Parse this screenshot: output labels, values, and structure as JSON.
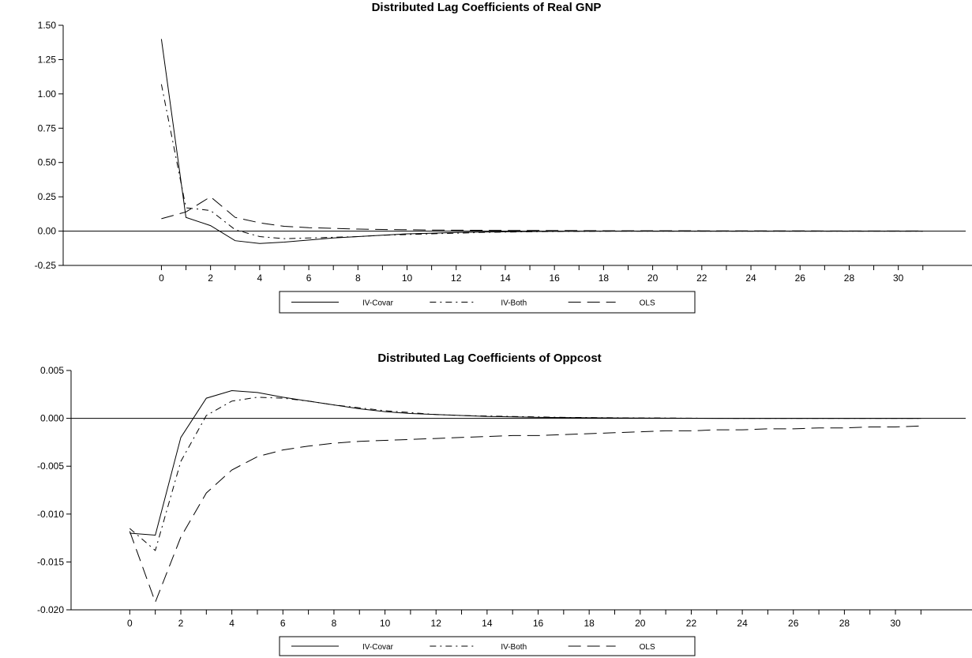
{
  "chart_data": [
    {
      "type": "line",
      "title": "Distributed Lag Coefficients of Real GNP",
      "xlabel": "",
      "ylabel": "",
      "x": [
        0,
        1,
        2,
        3,
        4,
        5,
        6,
        7,
        8,
        9,
        10,
        11,
        12,
        13,
        14,
        15,
        16,
        17,
        18,
        19,
        20,
        21,
        22,
        23,
        24,
        25,
        26,
        27,
        28,
        29,
        30,
        31
      ],
      "xticks": [
        "0",
        "2",
        "4",
        "6",
        "8",
        "10",
        "12",
        "14",
        "16",
        "18",
        "20",
        "22",
        "24",
        "26",
        "28",
        "30"
      ],
      "xlim": [
        -4,
        33
      ],
      "ylim": [
        -0.25,
        1.5
      ],
      "yticks": [
        "1.50",
        "1.25",
        "1.00",
        "0.75",
        "0.50",
        "0.25",
        "0.00",
        "-0.25"
      ],
      "legend_position": "bottom",
      "series": [
        {
          "name": "IV-Covar",
          "style": "solid",
          "values": [
            1.4,
            0.1,
            0.04,
            -0.07,
            -0.09,
            -0.08,
            -0.065,
            -0.05,
            -0.04,
            -0.03,
            -0.02,
            -0.015,
            -0.01,
            -0.007,
            -0.005,
            -0.003,
            -0.002,
            -0.001,
            0,
            0,
            0,
            0,
            0,
            0,
            0,
            0,
            0,
            0,
            0,
            0,
            0,
            0
          ]
        },
        {
          "name": "IV-Both",
          "style": "dash-dot",
          "values": [
            1.07,
            0.17,
            0.15,
            0.01,
            -0.04,
            -0.055,
            -0.05,
            -0.045,
            -0.04,
            -0.03,
            -0.025,
            -0.02,
            -0.015,
            -0.01,
            -0.007,
            -0.005,
            -0.003,
            -0.002,
            -0.001,
            0,
            0,
            0,
            0,
            0,
            0,
            0,
            0,
            0,
            0,
            0,
            0,
            0
          ]
        },
        {
          "name": "OLS",
          "style": "long-dash",
          "values": [
            0.09,
            0.14,
            0.25,
            0.1,
            0.06,
            0.035,
            0.025,
            0.02,
            0.015,
            0.012,
            0.01,
            0.008,
            0.007,
            0.006,
            0.005,
            0.005,
            0.004,
            0.004,
            0.003,
            0.003,
            0.003,
            0.003,
            0.002,
            0.002,
            0.002,
            0.002,
            0.002,
            0.001,
            0.001,
            0.001,
            0.001,
            0.001
          ]
        }
      ]
    },
    {
      "type": "line",
      "title": "Distributed Lag Coefficients of Oppcost",
      "xlabel": "",
      "ylabel": "",
      "x": [
        0,
        1,
        2,
        3,
        4,
        5,
        6,
        7,
        8,
        9,
        10,
        11,
        12,
        13,
        14,
        15,
        16,
        17,
        18,
        19,
        20,
        21,
        22,
        23,
        24,
        25,
        26,
        27,
        28,
        29,
        30,
        31
      ],
      "xticks": [
        "0",
        "2",
        "4",
        "6",
        "8",
        "10",
        "12",
        "14",
        "16",
        "18",
        "20",
        "22",
        "24",
        "26",
        "28",
        "30"
      ],
      "xlim": [
        -2.3,
        33
      ],
      "ylim": [
        -0.02,
        0.005
      ],
      "yticks": [
        "0.005",
        "0.000",
        "-0.005",
        "-0.010",
        "-0.015",
        "-0.020"
      ],
      "legend_position": "bottom",
      "series": [
        {
          "name": "IV-Covar",
          "style": "solid",
          "values": [
            -0.012,
            -0.0122,
            -0.002,
            0.0021,
            0.0029,
            0.0027,
            0.0022,
            0.0018,
            0.0014,
            0.001,
            0.0007,
            0.0005,
            0.0004,
            0.0003,
            0.0002,
            0.00015,
            0.0001,
            8e-05,
            6e-05,
            4e-05,
            3e-05,
            2e-05,
            1e-05,
            0,
            0,
            0,
            0,
            0,
            0,
            0,
            0,
            0
          ]
        },
        {
          "name": "IV-Both",
          "style": "dash-dot",
          "values": [
            -0.0115,
            -0.0138,
            -0.0045,
            0.0003,
            0.0018,
            0.0022,
            0.0021,
            0.0018,
            0.0014,
            0.0011,
            0.0008,
            0.0006,
            0.0004,
            0.0003,
            0.00025,
            0.0002,
            0.00015,
            0.0001,
            8e-05,
            6e-05,
            4e-05,
            3e-05,
            2e-05,
            1e-05,
            0,
            0,
            0,
            0,
            0,
            0,
            0,
            0
          ]
        },
        {
          "name": "OLS",
          "style": "long-dash",
          "values": [
            -0.0118,
            -0.0192,
            -0.0124,
            -0.0078,
            -0.0054,
            -0.004,
            -0.0033,
            -0.0029,
            -0.0026,
            -0.0024,
            -0.0023,
            -0.0022,
            -0.0021,
            -0.002,
            -0.0019,
            -0.0018,
            -0.0018,
            -0.0017,
            -0.0016,
            -0.0015,
            -0.0014,
            -0.0013,
            -0.0013,
            -0.0012,
            -0.0012,
            -0.0011,
            -0.0011,
            -0.001,
            -0.001,
            -0.0009,
            -0.0009,
            -0.0008
          ]
        }
      ]
    }
  ]
}
